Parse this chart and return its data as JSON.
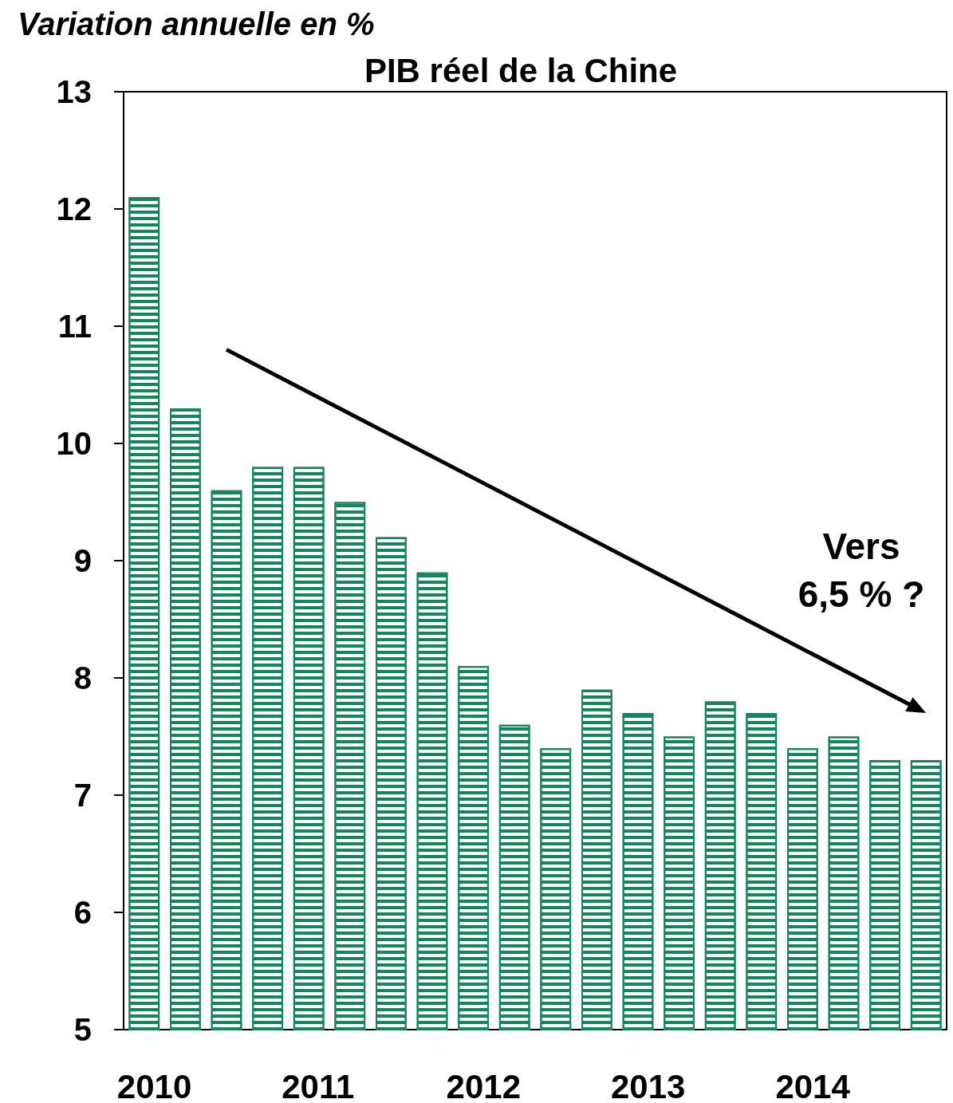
{
  "chart_data": {
    "type": "bar",
    "title": "PIB réel de la Chine",
    "ylabel": "Variation annuelle en %",
    "categories": [
      "2010",
      null,
      null,
      null,
      "2011",
      null,
      null,
      null,
      "2012",
      null,
      null,
      null,
      "2013",
      null,
      null,
      null,
      "2014",
      null,
      null,
      null
    ],
    "values": [
      12.1,
      10.3,
      9.6,
      9.8,
      9.8,
      9.5,
      9.2,
      8.9,
      8.1,
      7.6,
      7.4,
      7.9,
      7.7,
      7.5,
      7.8,
      7.7,
      7.4,
      7.5,
      7.3,
      7.3
    ],
    "color": "#13875a",
    "ylim": [
      5,
      13
    ],
    "yticks": [
      5,
      6,
      7,
      8,
      9,
      10,
      11,
      12,
      13
    ],
    "grid": false,
    "annotations": [
      "Vers\n6,5 % ?"
    ]
  }
}
